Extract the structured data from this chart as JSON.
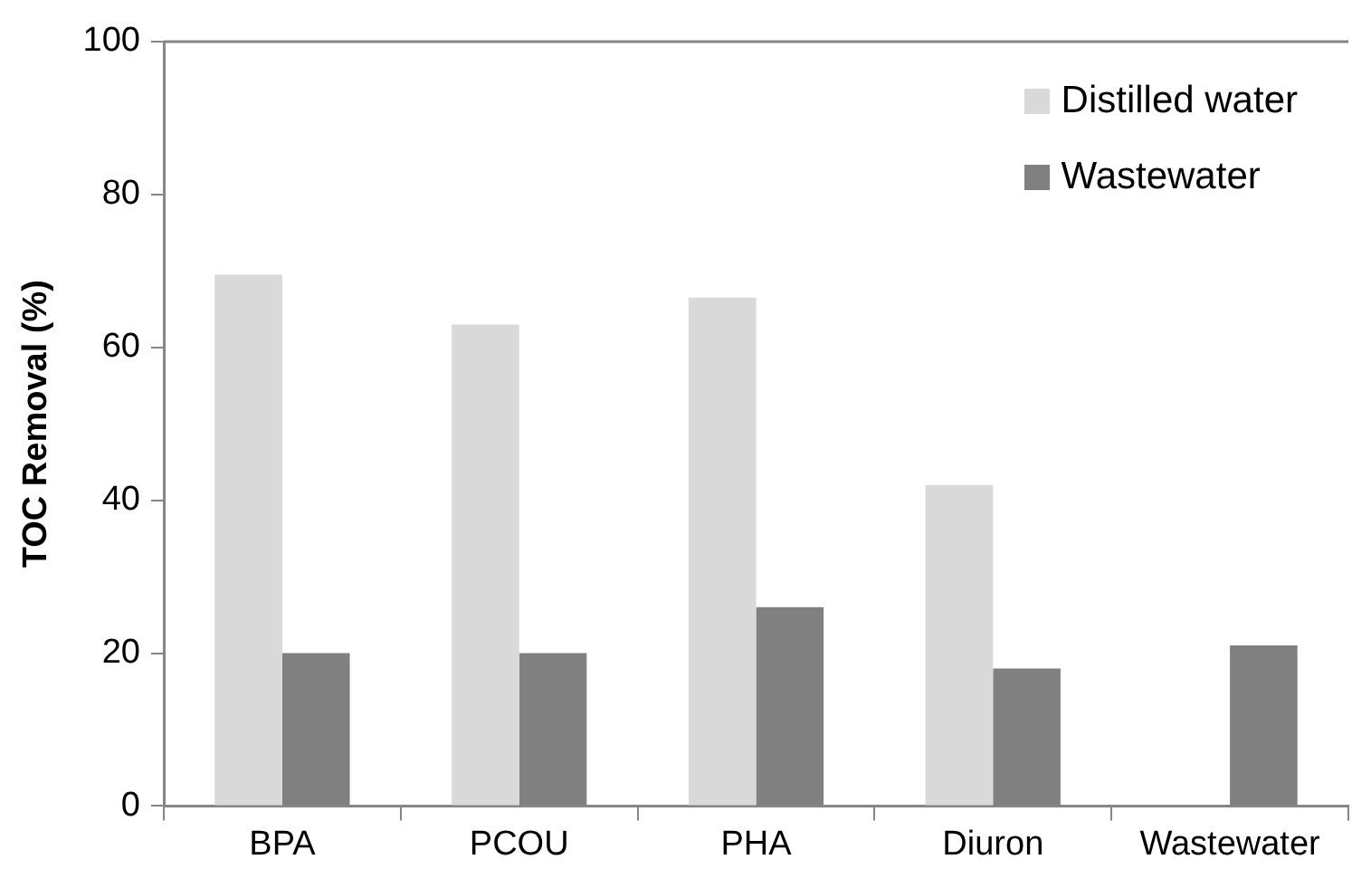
{
  "chart_data": {
    "type": "bar",
    "ylabel": "TOC Removal (%)",
    "categories": [
      "BPA",
      "PCOU",
      "PHA",
      "Diuron",
      "Wastewater"
    ],
    "series": [
      {
        "name": "Distilled water",
        "color": "#d9d9d9",
        "values": [
          69.5,
          63,
          66.5,
          42,
          null
        ]
      },
      {
        "name": "Wastewater",
        "color": "#808080",
        "values": [
          20,
          20,
          26,
          18,
          21
        ]
      }
    ],
    "ylim": [
      0,
      100
    ],
    "yticks": [
      0,
      20,
      40,
      60,
      80,
      100
    ],
    "grid": false,
    "legend": "top right"
  }
}
